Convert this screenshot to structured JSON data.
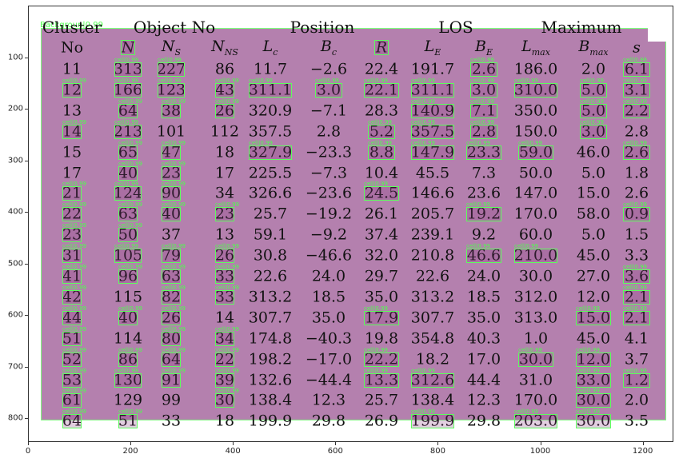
{
  "axes": {
    "x_ticks": [
      "0",
      "200",
      "400",
      "600",
      "800",
      "1000",
      "1200"
    ],
    "y_ticks": [
      "100",
      "200",
      "300",
      "400",
      "500",
      "600",
      "700",
      "800"
    ]
  },
  "region_label": "Backgroun|0.99",
  "box_label": "cell|0.99",
  "table": {
    "group_headers": [
      "Cluster",
      "Object No",
      "Position",
      "LOS",
      "Maximum"
    ],
    "column_headers": [
      "No",
      "N",
      "N_S",
      "N_NS",
      "L_c",
      "B_c",
      "R",
      "L_E",
      "B_E",
      "L_max",
      "B_max",
      "s"
    ],
    "rows": [
      [
        "11",
        "313",
        "227",
        "86",
        "11.7",
        "−2.6",
        "22.4",
        "191.7",
        "2.6",
        "186.0",
        "2.0",
        "6.1"
      ],
      [
        "12",
        "166",
        "123",
        "43",
        "311.1",
        "3.0",
        "22.1",
        "311.1",
        "3.0",
        "310.0",
        "5.0",
        "3.1"
      ],
      [
        "13",
        "64",
        "38",
        "26",
        "320.9",
        "−7.1",
        "28.3",
        "140.9",
        "7.1",
        "350.0",
        "5.0",
        "2.2"
      ],
      [
        "14",
        "213",
        "101",
        "112",
        "357.5",
        "2.8",
        "5.2",
        "357.5",
        "2.8",
        "150.0",
        "3.0",
        "2.8"
      ],
      [
        "15",
        "65",
        "47",
        "18",
        "327.9",
        "−23.3",
        "8.8",
        "147.9",
        "23.3",
        "59.0",
        "46.0",
        "2.6"
      ],
      [
        "17",
        "40",
        "23",
        "17",
        "225.5",
        "−7.3",
        "10.4",
        "45.5",
        "7.3",
        "50.0",
        "5.0",
        "1.8"
      ],
      [
        "21",
        "124",
        "90",
        "34",
        "326.6",
        "−23.6",
        "24.5",
        "146.6",
        "23.6",
        "147.0",
        "15.0",
        "2.6"
      ],
      [
        "22",
        "63",
        "40",
        "23",
        "25.7",
        "−19.2",
        "26.1",
        "205.7",
        "19.2",
        "170.0",
        "58.0",
        "0.9"
      ],
      [
        "23",
        "50",
        "37",
        "13",
        "59.1",
        "−9.2",
        "37.4",
        "239.1",
        "9.2",
        "60.0",
        "5.0",
        "1.5"
      ],
      [
        "31",
        "105",
        "79",
        "26",
        "30.8",
        "−46.6",
        "32.0",
        "210.8",
        "46.6",
        "210.0",
        "45.0",
        "3.3"
      ],
      [
        "41",
        "96",
        "63",
        "33",
        "22.6",
        "24.0",
        "29.7",
        "22.6",
        "24.0",
        "30.0",
        "27.0",
        "3.6"
      ],
      [
        "42",
        "115",
        "82",
        "33",
        "313.2",
        "18.5",
        "35.0",
        "313.2",
        "18.5",
        "312.0",
        "12.0",
        "2.1"
      ],
      [
        "44",
        "40",
        "26",
        "14",
        "307.7",
        "35.0",
        "17.9",
        "307.7",
        "35.0",
        "313.0",
        "15.0",
        "2.1"
      ],
      [
        "51",
        "114",
        "80",
        "34",
        "174.8",
        "−40.3",
        "19.8",
        "354.8",
        "40.3",
        "1.0",
        "45.0",
        "4.1"
      ],
      [
        "52",
        "86",
        "64",
        "22",
        "198.2",
        "−17.0",
        "22.2",
        "18.2",
        "17.0",
        "30.0",
        "12.0",
        "3.7"
      ],
      [
        "53",
        "130",
        "91",
        "39",
        "132.6",
        "−44.4",
        "13.3",
        "312.6",
        "44.4",
        "31.0",
        "33.0",
        "1.2"
      ],
      [
        "61",
        "129",
        "99",
        "30",
        "138.4",
        "12.3",
        "25.7",
        "138.4",
        "12.3",
        "170.0",
        "30.0",
        "2.0"
      ],
      [
        "64",
        "51",
        "33",
        "18",
        "199.9",
        "29.8",
        "26.9",
        "199.9",
        "29.8",
        "203.0",
        "30.0",
        "3.5"
      ]
    ]
  }
}
